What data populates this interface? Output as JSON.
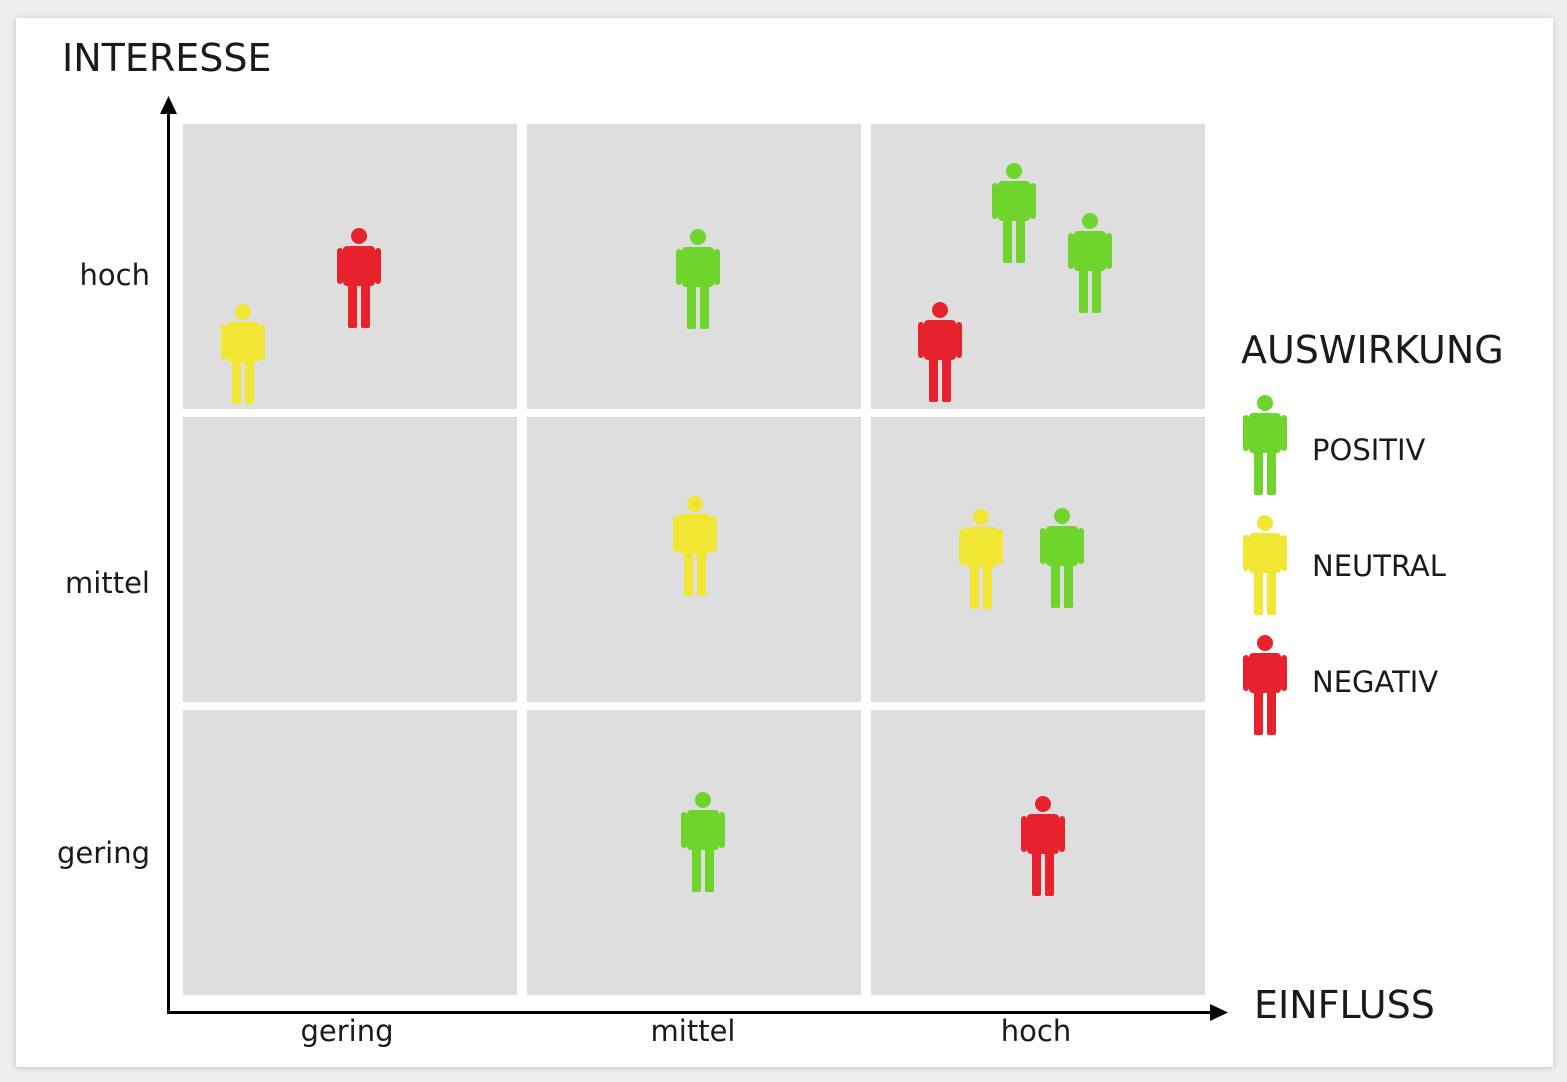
{
  "y_axis": {
    "title": "INTERESSE",
    "levels": [
      "hoch",
      "mittel",
      "gering"
    ]
  },
  "x_axis": {
    "title": "EINFLUSS",
    "levels": [
      "gering",
      "mittel",
      "hoch"
    ]
  },
  "legend": {
    "title": "AUSWIRKUNG",
    "items": [
      {
        "key": "positiv",
        "label": "POSITIV",
        "color": "#6fd42c"
      },
      {
        "key": "neutral",
        "label": "NEUTRAL",
        "color": "#f2e635"
      },
      {
        "key": "negativ",
        "label": "NEGATIV",
        "color": "#e8222d"
      }
    ]
  },
  "stakeholders": [
    {
      "einfluss": "gering",
      "interesse": "hoch",
      "auswirkung": "neutral"
    },
    {
      "einfluss": "gering",
      "interesse": "hoch",
      "auswirkung": "negativ"
    },
    {
      "einfluss": "mittel",
      "interesse": "hoch",
      "auswirkung": "positiv"
    },
    {
      "einfluss": "hoch",
      "interesse": "hoch",
      "auswirkung": "positiv"
    },
    {
      "einfluss": "hoch",
      "interesse": "hoch",
      "auswirkung": "positiv"
    },
    {
      "einfluss": "hoch",
      "interesse": "hoch",
      "auswirkung": "negativ"
    },
    {
      "einfluss": "mittel",
      "interesse": "mittel",
      "auswirkung": "neutral"
    },
    {
      "einfluss": "hoch",
      "interesse": "mittel",
      "auswirkung": "neutral"
    },
    {
      "einfluss": "hoch",
      "interesse": "mittel",
      "auswirkung": "positiv"
    },
    {
      "einfluss": "mittel",
      "interesse": "gering",
      "auswirkung": "positiv"
    },
    {
      "einfluss": "hoch",
      "interesse": "gering",
      "auswirkung": "negativ"
    }
  ]
}
